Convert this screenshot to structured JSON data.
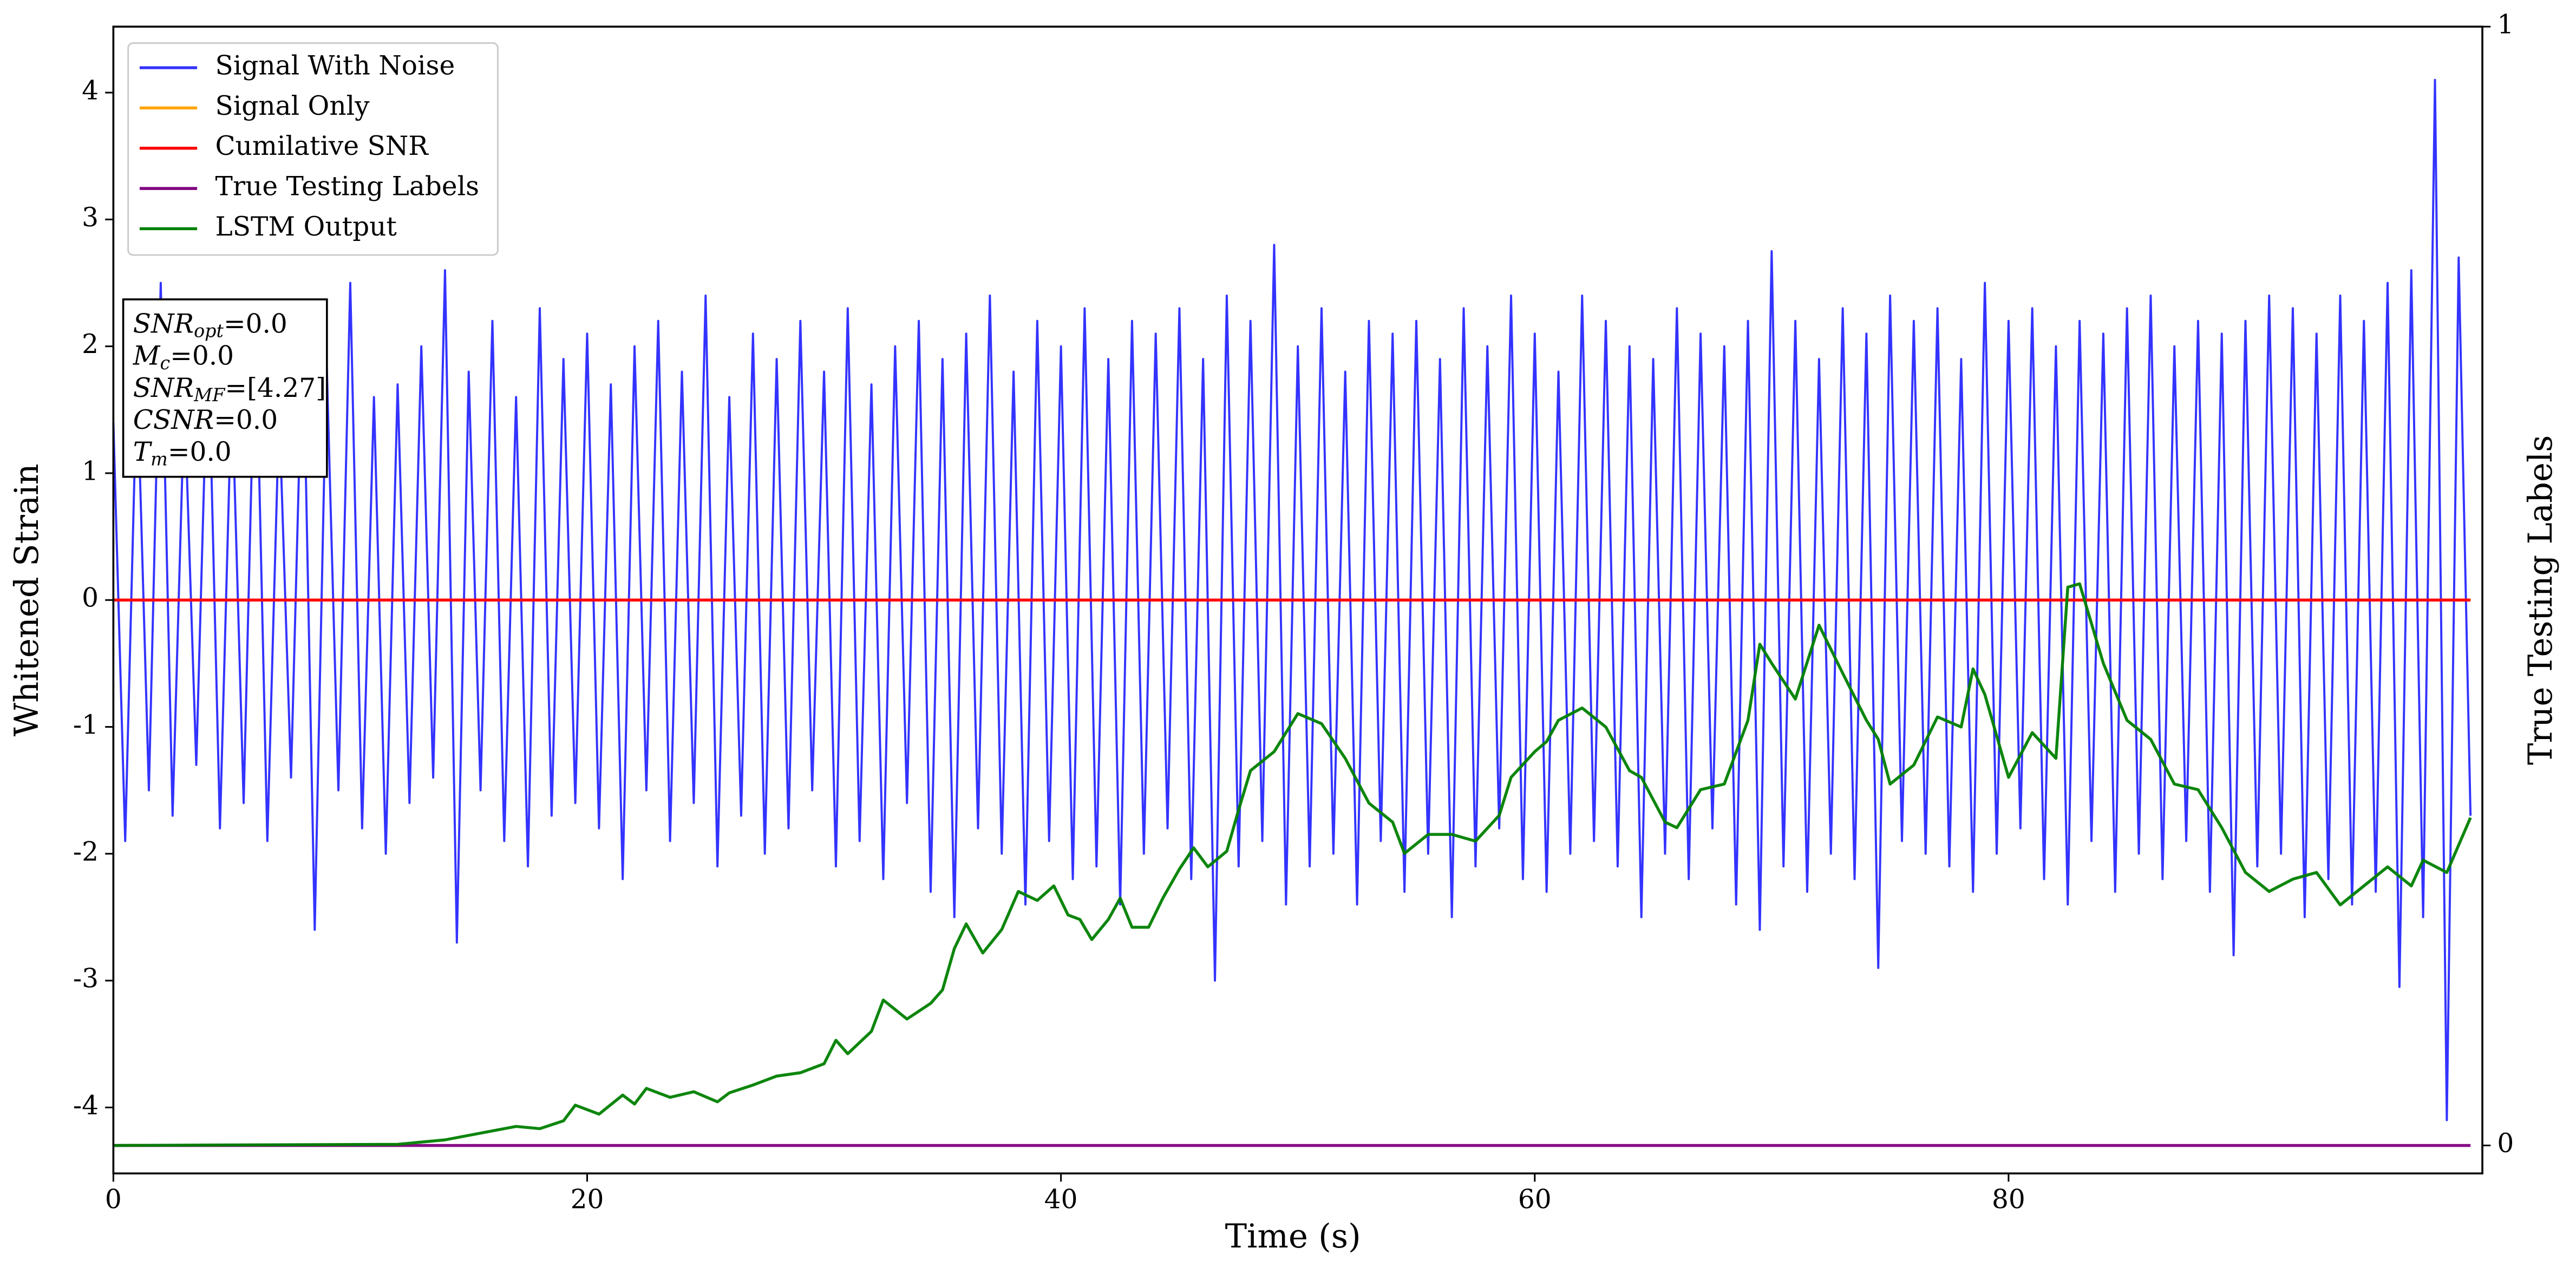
{
  "chart_data": {
    "type": "line",
    "xlabel": "Time (s)",
    "ylabel": "Whitened Strain",
    "y2label": "True Testing Labels",
    "xlim": [
      0,
      100
    ],
    "xticks": [
      0,
      20,
      40,
      60,
      80
    ],
    "ylim": [
      -4.52,
      4.52
    ],
    "yticks": [
      -4,
      -3,
      -2,
      -1,
      0,
      1,
      2,
      3,
      4
    ],
    "y2lim": [
      -0.025,
      1.0
    ],
    "y2ticks": [
      0,
      1
    ],
    "legend": "upper left",
    "annotation": [
      {
        "name": "SNR",
        "subscript": "opt",
        "text": "=0.0"
      },
      {
        "name": "M",
        "subscript": "c",
        "text": "=0.0"
      },
      {
        "name": "SNR",
        "subscript": "MF",
        "text": "=[4.27]"
      },
      {
        "name": "CSNR",
        "subscript": "",
        "text": "=0.0"
      },
      {
        "name": "T",
        "subscript": "m",
        "text": "=0.0"
      }
    ],
    "series": [
      {
        "name": "Signal With Noise",
        "color": "#3333ff",
        "x": [
          0,
          0.5,
          1,
          1.5,
          2,
          2.5,
          3,
          3.5,
          4,
          4.5,
          5,
          5.5,
          6,
          6.5,
          7,
          7.5,
          8,
          8.5,
          9,
          9.5,
          10,
          10.5,
          11,
          11.5,
          12,
          12.5,
          13,
          13.5,
          14,
          14.5,
          15,
          15.5,
          16,
          16.5,
          17,
          17.5,
          18,
          18.5,
          19,
          19.5,
          20,
          20.5,
          21,
          21.5,
          22,
          22.5,
          23,
          23.5,
          24,
          24.5,
          25,
          25.5,
          26,
          26.5,
          27,
          27.5,
          28,
          28.5,
          29,
          29.5,
          30,
          30.5,
          31,
          31.5,
          32,
          32.5,
          33,
          33.5,
          34,
          34.5,
          35,
          35.5,
          36,
          36.5,
          37,
          37.5,
          38,
          38.5,
          39,
          39.5,
          40,
          40.5,
          41,
          41.5,
          42,
          42.5,
          43,
          43.5,
          44,
          44.5,
          45,
          45.5,
          46,
          46.5,
          47,
          47.5,
          48,
          48.5,
          49,
          49.5,
          50,
          50.5,
          51,
          51.5,
          52,
          52.5,
          53,
          53.5,
          54,
          54.5,
          55,
          55.5,
          56,
          56.5,
          57,
          57.5,
          58,
          58.5,
          59,
          59.5,
          60,
          60.5,
          61,
          61.5,
          62,
          62.5,
          63,
          63.5,
          64,
          64.5,
          65,
          65.5,
          66,
          66.5,
          67,
          67.5,
          68,
          68.5,
          69,
          69.5,
          70,
          70.5,
          71,
          71.5,
          72,
          72.5,
          73,
          73.5,
          74,
          74.5,
          75,
          75.5,
          76,
          76.5,
          77,
          77.5,
          78,
          78.5,
          79,
          79.5,
          80,
          80.5,
          81,
          81.5,
          82,
          82.5,
          83,
          83.5,
          84,
          84.5,
          85,
          85.5,
          86,
          86.5,
          87,
          87.5,
          88,
          88.5,
          89,
          89.5,
          90,
          90.5,
          91,
          91.5,
          92,
          92.5,
          93,
          93.5,
          94,
          94.5,
          95,
          95.5,
          96,
          96.5,
          97,
          97.5,
          98,
          98.5,
          99,
          99.5
        ],
        "values": [
          1.4,
          -1.9,
          1.8,
          -1.5,
          2.5,
          -1.7,
          1.6,
          -1.3,
          2.1,
          -1.8,
          1.7,
          -1.6,
          2.3,
          -1.9,
          1.5,
          -1.4,
          2.2,
          -2.6,
          1.9,
          -1.5,
          2.5,
          -1.8,
          1.6,
          -2.0,
          1.7,
          -1.6,
          2.0,
          -1.4,
          2.6,
          -2.7,
          1.8,
          -1.5,
          2.2,
          -1.9,
          1.6,
          -2.1,
          2.3,
          -1.7,
          1.9,
          -1.6,
          2.1,
          -1.8,
          1.7,
          -2.2,
          2.0,
          -1.5,
          2.2,
          -1.9,
          1.8,
          -1.6,
          2.4,
          -2.1,
          1.6,
          -1.7,
          2.1,
          -2.0,
          1.9,
          -1.8,
          2.2,
          -1.5,
          1.8,
          -2.1,
          2.3,
          -1.9,
          1.7,
          -2.2,
          2.0,
          -1.6,
          2.2,
          -2.3,
          1.9,
          -2.5,
          2.1,
          -1.8,
          2.4,
          -2.0,
          1.8,
          -2.4,
          2.2,
          -1.9,
          2.0,
          -2.2,
          2.3,
          -2.1,
          1.9,
          -2.4,
          2.2,
          -2.0,
          2.1,
          -1.8,
          2.3,
          -2.2,
          1.9,
          -3.0,
          2.4,
          -2.1,
          2.2,
          -1.9,
          2.8,
          -2.4,
          2.0,
          -2.1,
          2.3,
          -2.0,
          1.8,
          -2.4,
          2.2,
          -1.9,
          2.1,
          -2.3,
          2.2,
          -2.0,
          1.9,
          -2.5,
          2.3,
          -2.1,
          2.0,
          -1.8,
          2.4,
          -2.2,
          2.1,
          -2.3,
          1.8,
          -2.0,
          2.4,
          -1.9,
          2.2,
          -2.1,
          2.0,
          -2.5,
          1.9,
          -2.0,
          2.3,
          -2.2,
          2.1,
          -1.8,
          2.0,
          -2.4,
          2.2,
          -2.6,
          2.75,
          -2.1,
          2.2,
          -2.3,
          1.9,
          -2.0,
          2.3,
          -2.2,
          2.1,
          -2.9,
          2.4,
          -1.9,
          2.2,
          -2.0,
          2.3,
          -2.1,
          1.9,
          -2.3,
          2.5,
          -2.0,
          2.2,
          -1.8,
          2.3,
          -2.2,
          2.0,
          -2.4,
          2.2,
          -1.9,
          2.1,
          -2.3,
          2.3,
          -2.0,
          2.4,
          -2.2,
          2.0,
          -1.9,
          2.2,
          -2.3,
          2.1,
          -2.8,
          2.2,
          -2.1,
          2.4,
          -2.0,
          2.3,
          -2.5,
          2.1,
          -2.2,
          2.4,
          -2.4,
          2.2,
          -2.3,
          2.5,
          -3.05,
          2.6,
          -2.5,
          4.1,
          -4.1,
          2.7,
          -1.7
        ]
      },
      {
        "name": "Signal Only",
        "color": "#ffa500",
        "x": [
          0,
          99.5
        ],
        "values": [
          0,
          0
        ]
      },
      {
        "name": "Cumilative SNR",
        "color": "#ff0000",
        "x": [
          0,
          99.5
        ],
        "values": [
          0,
          0
        ]
      },
      {
        "name": "True Testing Labels",
        "color": "#800080",
        "axis": "y2",
        "x": [
          0,
          99.5
        ],
        "values": [
          0,
          0
        ]
      },
      {
        "name": "LSTM Output",
        "color": "#008000",
        "axis": "y2",
        "x": [
          0,
          12,
          14,
          16,
          17,
          18,
          19,
          19.5,
          20.5,
          21.5,
          22,
          22.5,
          23.5,
          24.5,
          25.5,
          26,
          27,
          28,
          29,
          30,
          30.5,
          31,
          32,
          32.5,
          33.5,
          34.5,
          35,
          35.5,
          36,
          36.7,
          37.5,
          38.2,
          39,
          39.7,
          40.3,
          40.8,
          41.3,
          42,
          42.5,
          43,
          43.7,
          44.3,
          45,
          45.6,
          46.2,
          47,
          47.5,
          48,
          49,
          49.5,
          50,
          51,
          52,
          53,
          54,
          54.5,
          55.5,
          56.5,
          57.5,
          58.5,
          59,
          60,
          60.5,
          61,
          62,
          63,
          64,
          64.5,
          65.5,
          66,
          67,
          68,
          69,
          69.5,
          70,
          71,
          72,
          73,
          74,
          74.5,
          75,
          76,
          77,
          78,
          78.5,
          79,
          80,
          81,
          82,
          82.5,
          83,
          84,
          85,
          86,
          87,
          88,
          89,
          90,
          91,
          92,
          93,
          94,
          95,
          96,
          97,
          97.5,
          98.5,
          99.5
        ],
        "values": [
          0,
          0.001,
          0.005,
          0.013,
          0.017,
          0.015,
          0.022,
          0.036,
          0.028,
          0.045,
          0.037,
          0.051,
          0.043,
          0.048,
          0.039,
          0.047,
          0.054,
          0.062,
          0.065,
          0.073,
          0.094,
          0.082,
          0.102,
          0.13,
          0.113,
          0.127,
          0.139,
          0.176,
          0.198,
          0.172,
          0.193,
          0.227,
          0.219,
          0.232,
          0.206,
          0.202,
          0.184,
          0.202,
          0.221,
          0.195,
          0.195,
          0.221,
          0.247,
          0.266,
          0.249,
          0.263,
          0.3,
          0.335,
          0.352,
          0.369,
          0.386,
          0.377,
          0.346,
          0.306,
          0.289,
          0.261,
          0.278,
          0.278,
          0.272,
          0.295,
          0.329,
          0.352,
          0.361,
          0.38,
          0.391,
          0.374,
          0.335,
          0.329,
          0.289,
          0.284,
          0.318,
          0.323,
          0.38,
          0.448,
          0.431,
          0.399,
          0.465,
          0.422,
          0.38,
          0.363,
          0.323,
          0.34,
          0.383,
          0.374,
          0.426,
          0.403,
          0.329,
          0.369,
          0.346,
          0.499,
          0.502,
          0.431,
          0.38,
          0.363,
          0.323,
          0.318,
          0.284,
          0.244,
          0.227,
          0.238,
          0.244,
          0.215,
          0.232,
          0.249,
          0.232,
          0.255,
          0.244,
          0.293
        ]
      }
    ]
  }
}
